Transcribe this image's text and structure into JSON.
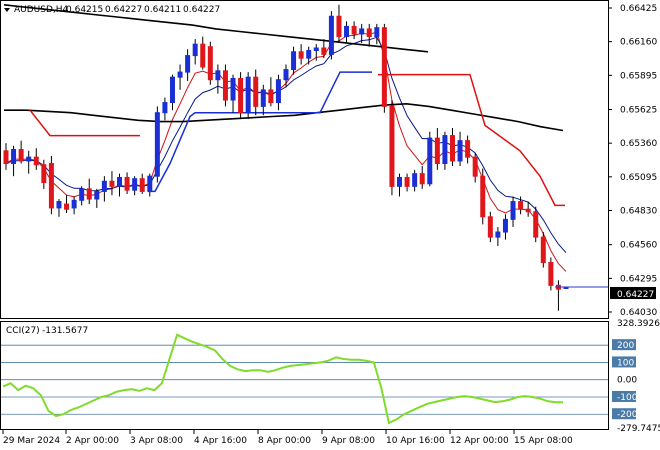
{
  "header": {
    "symbol": "AUDUSD,H4",
    "open": "0.64215",
    "high": "0.64227",
    "low": "0.64211",
    "close": "0.64227",
    "menu_icon": "triangle-down-icon"
  },
  "indicator_header": {
    "name": "CCI(27)",
    "value": "-131.5677"
  },
  "colors": {
    "bull": "#1a2fd6",
    "bear": "#e0161b",
    "ma_black": "#000000",
    "ma_red": "#d21414",
    "ma_navy": "#0a1a88",
    "stop_red": "#e01010",
    "stop_blue": "#1a2fd6",
    "cci_line": "#7fdc2a",
    "level_line": "#4a7aa7"
  },
  "chart_data": [
    {
      "type": "candlestick",
      "title": "AUDUSD,H4",
      "ylim": [
        0.6403,
        0.66425
      ],
      "y_ticks": [
        "0.66425",
        "0.66160",
        "0.65895",
        "0.65625",
        "0.65360",
        "0.65095",
        "0.64830",
        "0.64560",
        "0.64295",
        "0.64030"
      ],
      "current_price": "0.64227",
      "x_ticks": [
        "29 Mar 2024",
        "2 Apr 00:00",
        "3 Apr 08:00",
        "4 Apr 16:00",
        "8 Apr 00:00",
        "9 Apr 08:00",
        "10 Apr 16:00",
        "12 Apr 00:00",
        "15 Apr 08:00"
      ],
      "candles": [
        {
          "o": 0.653,
          "h": 0.6536,
          "l": 0.6515,
          "c": 0.652
        },
        {
          "o": 0.652,
          "h": 0.6534,
          "l": 0.651,
          "c": 0.6531
        },
        {
          "o": 0.6531,
          "h": 0.6538,
          "l": 0.652,
          "c": 0.6522
        },
        {
          "o": 0.6522,
          "h": 0.653,
          "l": 0.6512,
          "c": 0.6525
        },
        {
          "o": 0.6525,
          "h": 0.6532,
          "l": 0.6515,
          "c": 0.6519
        },
        {
          "o": 0.6519,
          "h": 0.6523,
          "l": 0.65,
          "c": 0.6505
        },
        {
          "o": 0.652,
          "h": 0.6526,
          "l": 0.648,
          "c": 0.6485
        },
        {
          "o": 0.6485,
          "h": 0.6492,
          "l": 0.6478,
          "c": 0.649
        },
        {
          "o": 0.6488,
          "h": 0.6495,
          "l": 0.6481,
          "c": 0.6484
        },
        {
          "o": 0.6485,
          "h": 0.6494,
          "l": 0.648,
          "c": 0.6491
        },
        {
          "o": 0.6491,
          "h": 0.6502,
          "l": 0.6487,
          "c": 0.65
        },
        {
          "o": 0.65,
          "h": 0.6508,
          "l": 0.6488,
          "c": 0.6492
        },
        {
          "o": 0.6492,
          "h": 0.65,
          "l": 0.6485,
          "c": 0.6498
        },
        {
          "o": 0.6498,
          "h": 0.651,
          "l": 0.649,
          "c": 0.6506
        },
        {
          "o": 0.6506,
          "h": 0.6514,
          "l": 0.6495,
          "c": 0.6502
        },
        {
          "o": 0.6502,
          "h": 0.6512,
          "l": 0.6494,
          "c": 0.6509
        },
        {
          "o": 0.6509,
          "h": 0.6513,
          "l": 0.6496,
          "c": 0.6499
        },
        {
          "o": 0.6499,
          "h": 0.651,
          "l": 0.6495,
          "c": 0.6508
        },
        {
          "o": 0.6508,
          "h": 0.6512,
          "l": 0.6496,
          "c": 0.6498
        },
        {
          "o": 0.6498,
          "h": 0.6512,
          "l": 0.6494,
          "c": 0.651
        },
        {
          "o": 0.651,
          "h": 0.6565,
          "l": 0.6505,
          "c": 0.656
        },
        {
          "o": 0.656,
          "h": 0.6572,
          "l": 0.6554,
          "c": 0.6568
        },
        {
          "o": 0.6568,
          "h": 0.659,
          "l": 0.6562,
          "c": 0.6588
        },
        {
          "o": 0.6588,
          "h": 0.6598,
          "l": 0.6578,
          "c": 0.6592
        },
        {
          "o": 0.6592,
          "h": 0.661,
          "l": 0.6585,
          "c": 0.6605
        },
        {
          "o": 0.6605,
          "h": 0.6618,
          "l": 0.6598,
          "c": 0.6614
        },
        {
          "o": 0.6614,
          "h": 0.662,
          "l": 0.6594,
          "c": 0.6596
        },
        {
          "o": 0.6612,
          "h": 0.6616,
          "l": 0.6582,
          "c": 0.6586
        },
        {
          "o": 0.6586,
          "h": 0.6598,
          "l": 0.6575,
          "c": 0.6593
        },
        {
          "o": 0.6593,
          "h": 0.6598,
          "l": 0.6565,
          "c": 0.657
        },
        {
          "o": 0.657,
          "h": 0.659,
          "l": 0.656,
          "c": 0.6587
        },
        {
          "o": 0.6587,
          "h": 0.6592,
          "l": 0.6555,
          "c": 0.656
        },
        {
          "o": 0.656,
          "h": 0.6592,
          "l": 0.6555,
          "c": 0.6588
        },
        {
          "o": 0.6588,
          "h": 0.6594,
          "l": 0.6558,
          "c": 0.6565
        },
        {
          "o": 0.6565,
          "h": 0.6582,
          "l": 0.6558,
          "c": 0.6578
        },
        {
          "o": 0.6578,
          "h": 0.6588,
          "l": 0.6565,
          "c": 0.6568
        },
        {
          "o": 0.6568,
          "h": 0.659,
          "l": 0.6562,
          "c": 0.6586
        },
        {
          "o": 0.6586,
          "h": 0.6598,
          "l": 0.658,
          "c": 0.6594
        },
        {
          "o": 0.6594,
          "h": 0.6612,
          "l": 0.659,
          "c": 0.6608
        },
        {
          "o": 0.6608,
          "h": 0.6614,
          "l": 0.6598,
          "c": 0.6603
        },
        {
          "o": 0.6603,
          "h": 0.6612,
          "l": 0.6598,
          "c": 0.6609
        },
        {
          "o": 0.6609,
          "h": 0.6614,
          "l": 0.6601,
          "c": 0.6611
        },
        {
          "o": 0.6611,
          "h": 0.6618,
          "l": 0.6603,
          "c": 0.6606
        },
        {
          "o": 0.6606,
          "h": 0.664,
          "l": 0.6602,
          "c": 0.6636
        },
        {
          "o": 0.6636,
          "h": 0.6645,
          "l": 0.6615,
          "c": 0.662
        },
        {
          "o": 0.662,
          "h": 0.6632,
          "l": 0.6615,
          "c": 0.6628
        },
        {
          "o": 0.6628,
          "h": 0.6632,
          "l": 0.6618,
          "c": 0.6622
        },
        {
          "o": 0.6622,
          "h": 0.663,
          "l": 0.6615,
          "c": 0.6626
        },
        {
          "o": 0.6626,
          "h": 0.663,
          "l": 0.6612,
          "c": 0.662
        },
        {
          "o": 0.662,
          "h": 0.663,
          "l": 0.6614,
          "c": 0.6627
        },
        {
          "o": 0.6627,
          "h": 0.663,
          "l": 0.656,
          "c": 0.6565
        },
        {
          "o": 0.6565,
          "h": 0.657,
          "l": 0.6495,
          "c": 0.6502
        },
        {
          "o": 0.6502,
          "h": 0.6512,
          "l": 0.6494,
          "c": 0.6509
        },
        {
          "o": 0.6509,
          "h": 0.6512,
          "l": 0.6498,
          "c": 0.6502
        },
        {
          "o": 0.6502,
          "h": 0.6515,
          "l": 0.6498,
          "c": 0.6512
        },
        {
          "o": 0.6512,
          "h": 0.6518,
          "l": 0.65,
          "c": 0.6504
        },
        {
          "o": 0.6504,
          "h": 0.6545,
          "l": 0.6502,
          "c": 0.654
        },
        {
          "o": 0.654,
          "h": 0.6548,
          "l": 0.6515,
          "c": 0.652
        },
        {
          "o": 0.652,
          "h": 0.6545,
          "l": 0.6515,
          "c": 0.6542
        },
        {
          "o": 0.6542,
          "h": 0.6548,
          "l": 0.6518,
          "c": 0.6522
        },
        {
          "o": 0.6522,
          "h": 0.6545,
          "l": 0.6518,
          "c": 0.6538
        },
        {
          "o": 0.6538,
          "h": 0.6542,
          "l": 0.652,
          "c": 0.6525
        },
        {
          "o": 0.6525,
          "h": 0.6528,
          "l": 0.6505,
          "c": 0.651
        },
        {
          "o": 0.651,
          "h": 0.6516,
          "l": 0.6472,
          "c": 0.6478
        },
        {
          "o": 0.6478,
          "h": 0.6482,
          "l": 0.6458,
          "c": 0.6462
        },
        {
          "o": 0.6462,
          "h": 0.647,
          "l": 0.6455,
          "c": 0.6466
        },
        {
          "o": 0.6466,
          "h": 0.648,
          "l": 0.646,
          "c": 0.6476
        },
        {
          "o": 0.6476,
          "h": 0.6494,
          "l": 0.647,
          "c": 0.649
        },
        {
          "o": 0.649,
          "h": 0.6494,
          "l": 0.648,
          "c": 0.6484
        },
        {
          "o": 0.6484,
          "h": 0.649,
          "l": 0.6478,
          "c": 0.6482
        },
        {
          "o": 0.6482,
          "h": 0.6486,
          "l": 0.6458,
          "c": 0.6462
        },
        {
          "o": 0.6462,
          "h": 0.6466,
          "l": 0.6438,
          "c": 0.6442
        },
        {
          "o": 0.6442,
          "h": 0.6446,
          "l": 0.642,
          "c": 0.6424
        },
        {
          "o": 0.6424,
          "h": 0.6428,
          "l": 0.6404,
          "c": 0.6421
        },
        {
          "o": 0.64215,
          "h": 0.64227,
          "l": 0.64211,
          "c": 0.64227
        }
      ],
      "series": [
        {
          "name": "",
          "color": "#000000",
          "values": [
            0.6645,
            0.6643,
            0.6641,
            0.6639,
            0.6637,
            0.6635,
            0.6633,
            0.6631,
            0.6629,
            0.6626,
            0.6624,
            0.6622,
            0.662,
            0.6618,
            0.6616,
            0.6614,
            0.6612,
            0.661,
            0.6608
          ]
        },
        {
          "name": "",
          "color": "#000000",
          "values": [
            0.6562,
            0.6562,
            0.6561,
            0.656,
            0.6558,
            0.6556,
            0.6554,
            0.6553,
            0.6553,
            0.6554,
            0.6555,
            0.6556,
            0.6557,
            0.6558,
            0.656,
            0.6562,
            0.6564,
            0.6566,
            0.6567,
            0.6565,
            0.6562,
            0.6559,
            0.6556,
            0.6553,
            0.6549,
            0.6546
          ]
        }
      ]
    },
    {
      "type": "line",
      "title": "CCI(27)",
      "ylim": [
        -279.7475,
        328.3926
      ],
      "y_ticks": [
        "328.3926",
        "200",
        "100",
        "0.00",
        "-100",
        "-200",
        "-279.7475"
      ],
      "levels": [
        200,
        100,
        0,
        -100,
        -200
      ],
      "values": [
        -40,
        -20,
        -60,
        -35,
        -50,
        -90,
        -180,
        -210,
        -200,
        -175,
        -160,
        -140,
        -120,
        -100,
        -90,
        -70,
        -60,
        -55,
        -65,
        -50,
        -60,
        -20,
        120,
        260,
        240,
        220,
        205,
        190,
        170,
        120,
        80,
        60,
        50,
        55,
        55,
        45,
        55,
        70,
        80,
        85,
        90,
        95,
        100,
        110,
        130,
        120,
        115,
        115,
        110,
        100,
        -50,
        -250,
        -230,
        -200,
        -180,
        -160,
        -140,
        -130,
        -120,
        -110,
        -100,
        -95,
        -100,
        -110,
        -120,
        -130,
        -125,
        -115,
        -100,
        -95,
        -100,
        -110,
        -125,
        -130,
        -131.5677
      ]
    }
  ]
}
